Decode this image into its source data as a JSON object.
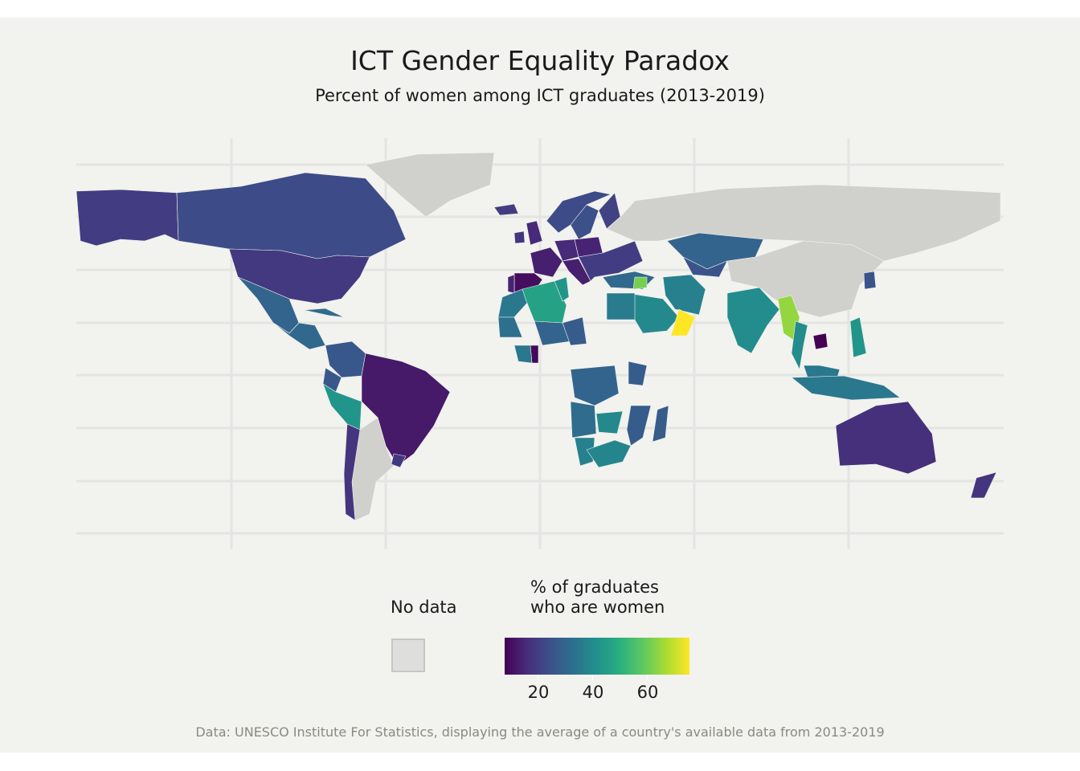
{
  "title": "ICT Gender Equality Paradox",
  "subtitle": "Percent of women among ICT graduates (2013-2019)",
  "legend": {
    "no_data_label": "No data",
    "scale_title_line1": "% of graduates",
    "scale_title_line2": "who are women",
    "scale_ticks": [
      "20",
      "40",
      "60"
    ],
    "scale_min": 13,
    "scale_max": 75,
    "no_data_color": "#dededd"
  },
  "caption": "Data: UNESCO Institute For Statistics, displaying the average of a country's available data from 2013-2019",
  "colors": {
    "background": "#f2f2ee",
    "no_data": "#d0d0cc",
    "grid": "#e4e4e2"
  },
  "chart_data": {
    "type": "choropleth",
    "variable": "% of graduates who are women",
    "regions": [
      {
        "name": "Alaska (USA)",
        "value": 24
      },
      {
        "name": "Canada",
        "value": 27
      },
      {
        "name": "United States",
        "value": 23
      },
      {
        "name": "Mexico",
        "value": 33
      },
      {
        "name": "Central America",
        "value": 34
      },
      {
        "name": "Cuba",
        "value": 35
      },
      {
        "name": "Colombia",
        "value": 30
      },
      {
        "name": "Ecuador",
        "value": 30
      },
      {
        "name": "Peru",
        "value": 45
      },
      {
        "name": "Brazil",
        "value": 17
      },
      {
        "name": "Uruguay",
        "value": 23
      },
      {
        "name": "Chile",
        "value": 22
      },
      {
        "name": "Greenland",
        "value": null
      },
      {
        "name": "Iceland",
        "value": 24
      },
      {
        "name": "United Kingdom",
        "value": 20
      },
      {
        "name": "Ireland",
        "value": 22
      },
      {
        "name": "Norway",
        "value": 27
      },
      {
        "name": "Sweden",
        "value": 28
      },
      {
        "name": "Finland",
        "value": 25
      },
      {
        "name": "France",
        "value": 18
      },
      {
        "name": "Spain",
        "value": 15
      },
      {
        "name": "Portugal",
        "value": 19
      },
      {
        "name": "Germany",
        "value": 20
      },
      {
        "name": "Italy",
        "value": 18
      },
      {
        "name": "Poland",
        "value": 19
      },
      {
        "name": "Eastern Europe",
        "value": 24
      },
      {
        "name": "Turkey",
        "value": 34
      },
      {
        "name": "Morocco",
        "value": 38
      },
      {
        "name": "Algeria",
        "value": 48
      },
      {
        "name": "Tunisia",
        "value": 45
      },
      {
        "name": "Egypt",
        "value": 39
      },
      {
        "name": "Saudi Arabia",
        "value": 42
      },
      {
        "name": "Oman",
        "value": 75
      },
      {
        "name": "Syria",
        "value": 62
      },
      {
        "name": "Iran",
        "value": 40
      },
      {
        "name": "Kazakhstan",
        "value": 33
      },
      {
        "name": "Uzbekistan",
        "value": 29
      },
      {
        "name": "India",
        "value": 43
      },
      {
        "name": "Myanmar",
        "value": 65
      },
      {
        "name": "Thailand",
        "value": 43
      },
      {
        "name": "Cambodia",
        "value": 13
      },
      {
        "name": "Malaysia",
        "value": 38
      },
      {
        "name": "Indonesia",
        "value": 38
      },
      {
        "name": "Philippines",
        "value": 45
      },
      {
        "name": "South Korea",
        "value": 29
      },
      {
        "name": "Mauritania",
        "value": 36
      },
      {
        "name": "Niger",
        "value": 33
      },
      {
        "name": "Chad",
        "value": 31
      },
      {
        "name": "Ghana",
        "value": 14
      },
      {
        "name": "Cote d'Ivoire",
        "value": 38
      },
      {
        "name": "DR Congo",
        "value": 33
      },
      {
        "name": "Angola",
        "value": 35
      },
      {
        "name": "Zambia",
        "value": 42
      },
      {
        "name": "Kenya",
        "value": 31
      },
      {
        "name": "Mozambique",
        "value": 31
      },
      {
        "name": "Madagascar",
        "value": 31
      },
      {
        "name": "Namibia",
        "value": 40
      },
      {
        "name": "South Africa",
        "value": 41
      },
      {
        "name": "Australia",
        "value": 21
      },
      {
        "name": "New Zealand",
        "value": 22
      },
      {
        "name": "Russia",
        "value": null
      },
      {
        "name": "China",
        "value": null
      },
      {
        "name": "Argentina",
        "value": null
      }
    ]
  }
}
